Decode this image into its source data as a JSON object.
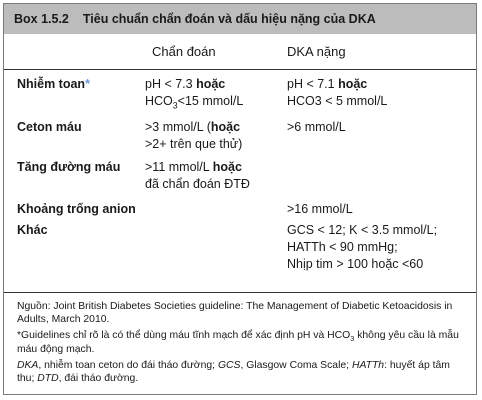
{
  "header": {
    "number": "Box 1.5.2",
    "title": "Tiêu chuẩn chẩn đoán và dấu hiệu nặng của DKA"
  },
  "columns": {
    "c1": "Chẩn đoán",
    "c2": "DKA nặng"
  },
  "rows": [
    {
      "label": "Nhiễm toan",
      "mark": "*",
      "c1": [
        {
          "t": "pH < 7.3 ",
          "b": "hoặc"
        },
        {
          "t": "HCO",
          "sub": "3",
          "t2": "<15 mmol/L"
        }
      ],
      "c2": [
        {
          "t": "pH < 7.1 ",
          "b": "hoặc"
        },
        {
          "t": "HCO3 < 5 mmol/L"
        }
      ]
    },
    {
      "label": "Ceton máu",
      "c1": [
        {
          "t": ">3 mmol/L (",
          "b": "hoặc"
        },
        {
          "t": ">2+  trên que thử)"
        }
      ],
      "c2": [
        {
          "t": ">6 mmol/L"
        }
      ]
    },
    {
      "label": "Tăng đường máu",
      "c1": [
        {
          "t": ">11 mmol/L ",
          "b": "hoặc"
        },
        {
          "t": "đã chẩn đoán ĐTĐ"
        }
      ],
      "c2": []
    },
    {
      "label": "Khoảng trống anion",
      "c1": [],
      "c2": [
        {
          "t": ">16 mmol/L"
        }
      ]
    },
    {
      "label": "Khác",
      "c1": [],
      "c2": [
        {
          "t": "GCS < 12; K < 3.5 mmol/L;"
        },
        {
          "t": "HATTh < 90 mmHg;"
        },
        {
          "t": "Nhịp tim > 100 hoặc <60"
        }
      ]
    }
  ],
  "footer": {
    "source": "Nguồn: Joint British Diabetes Societies guideline: The Management of Diabetic Ketoacidosis in Adults, March 2010.",
    "note_a": "*Guidelines chỉ rõ là có thể dùng máu tĩnh mạch để xác định pH và HCO",
    "note_sub": "3",
    "note_b": " không yêu cầu là mẫu máu động mạch.",
    "abbr": [
      {
        "i": "DKA",
        "t": ", nhiễm toan ceton do đái tháo đường; "
      },
      {
        "i": "GCS",
        "t": ", Glasgow Coma Scale; "
      },
      {
        "i": "HATTh",
        "t": ": huyết áp tâm thu; "
      },
      {
        "i": "DTD",
        "t": ", đái tháo đường."
      }
    ]
  }
}
